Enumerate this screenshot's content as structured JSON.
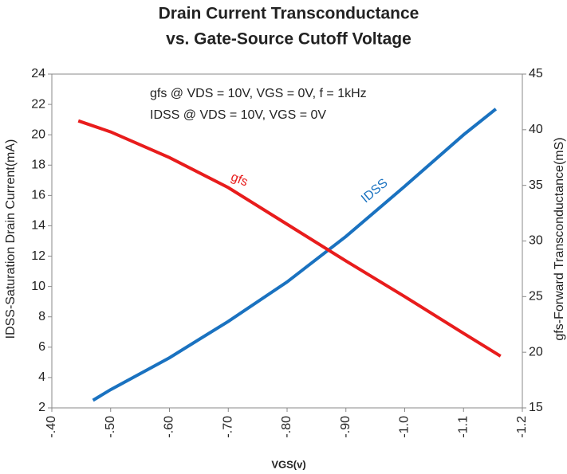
{
  "chart_data": {
    "type": "line",
    "title": [
      "Drain Current Transconductance",
      "vs. Gate-Source Cutoff Voltage"
    ],
    "xlabel": "VGS(v)",
    "ylabel": "IDSS-Saturation Drain Current(mA)",
    "y2label": "gfs-Forward Transconductance(mS)",
    "annotations": [
      "gfs @ VDS = 10V, VGS = 0V, f = 1kHz",
      "IDSS @ VDS = 10V, VGS = 0V"
    ],
    "xlim": [
      -0.4,
      -1.2
    ],
    "xticks": [
      {
        "value": -0.4,
        "label": "-.40"
      },
      {
        "value": -0.5,
        "label": "-.50"
      },
      {
        "value": -0.6,
        "label": "-.60"
      },
      {
        "value": -0.7,
        "label": "-.70"
      },
      {
        "value": -0.8,
        "label": "-.80"
      },
      {
        "value": -0.9,
        "label": "-.90"
      },
      {
        "value": -1.0,
        "label": "-1.0"
      },
      {
        "value": -1.1,
        "label": "-1.1"
      },
      {
        "value": -1.2,
        "label": "-1.2"
      }
    ],
    "ylim": [
      2,
      24
    ],
    "yticks": [
      2,
      4,
      6,
      8,
      10,
      12,
      14,
      16,
      18,
      20,
      22,
      24
    ],
    "y2lim": [
      15,
      45
    ],
    "y2ticks": [
      15,
      20,
      25,
      30,
      35,
      40,
      45
    ],
    "series": [
      {
        "name": "IDSS",
        "color": "#1a72c0",
        "x": [
          -0.47,
          -0.5,
          -0.6,
          -0.7,
          -0.8,
          -0.9,
          -1.0,
          -1.1,
          -1.155
        ],
        "values": [
          2.5,
          3.2,
          5.3,
          7.7,
          10.3,
          13.3,
          16.6,
          20.0,
          21.7
        ]
      },
      {
        "name": "gfs",
        "color": "#e81c1c",
        "axis": "y2",
        "x": [
          -0.445,
          -0.5,
          -0.6,
          -0.7,
          -0.8,
          -0.9,
          -1.0,
          -1.1,
          -1.163
        ],
        "values": [
          40.8,
          39.8,
          37.5,
          34.8,
          31.5,
          28.2,
          25.0,
          21.7,
          19.65
        ]
      }
    ]
  }
}
